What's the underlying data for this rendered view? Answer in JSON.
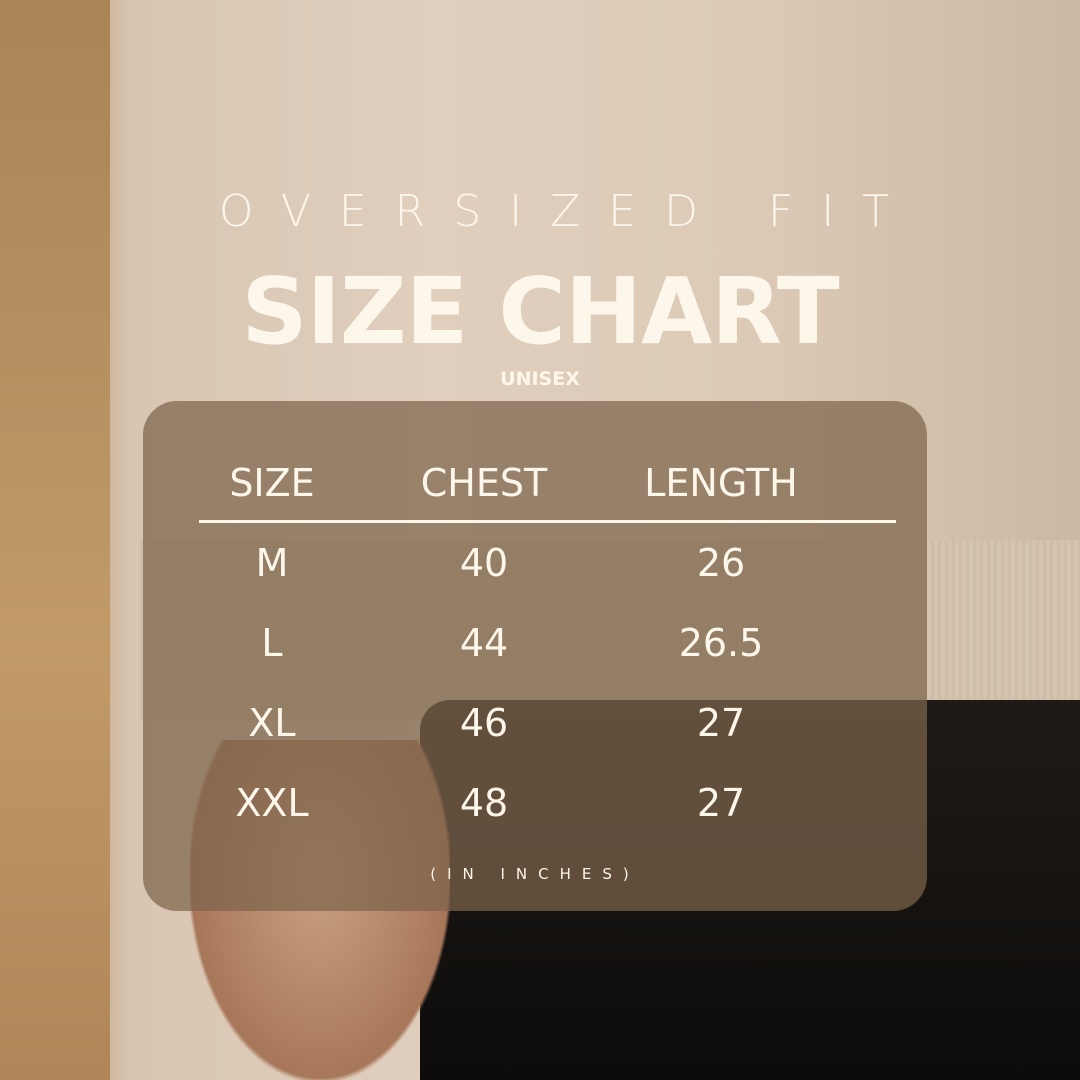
{
  "subtitle": "OVERSIZED FIT",
  "title": "SIZE CHART",
  "tagline": "UNISEX",
  "table": {
    "headers": [
      "SIZE",
      "CHEST",
      "LENGTH"
    ],
    "rows": [
      [
        "M",
        "40",
        "26"
      ],
      [
        "L",
        "44",
        "26.5"
      ],
      [
        "XL",
        "46",
        "27"
      ],
      [
        "XXL",
        "48",
        "27"
      ]
    ]
  },
  "units_note": "(IN INCHES)",
  "colors": {
    "text": "#fdf6ea",
    "panel": "#7d644b"
  }
}
